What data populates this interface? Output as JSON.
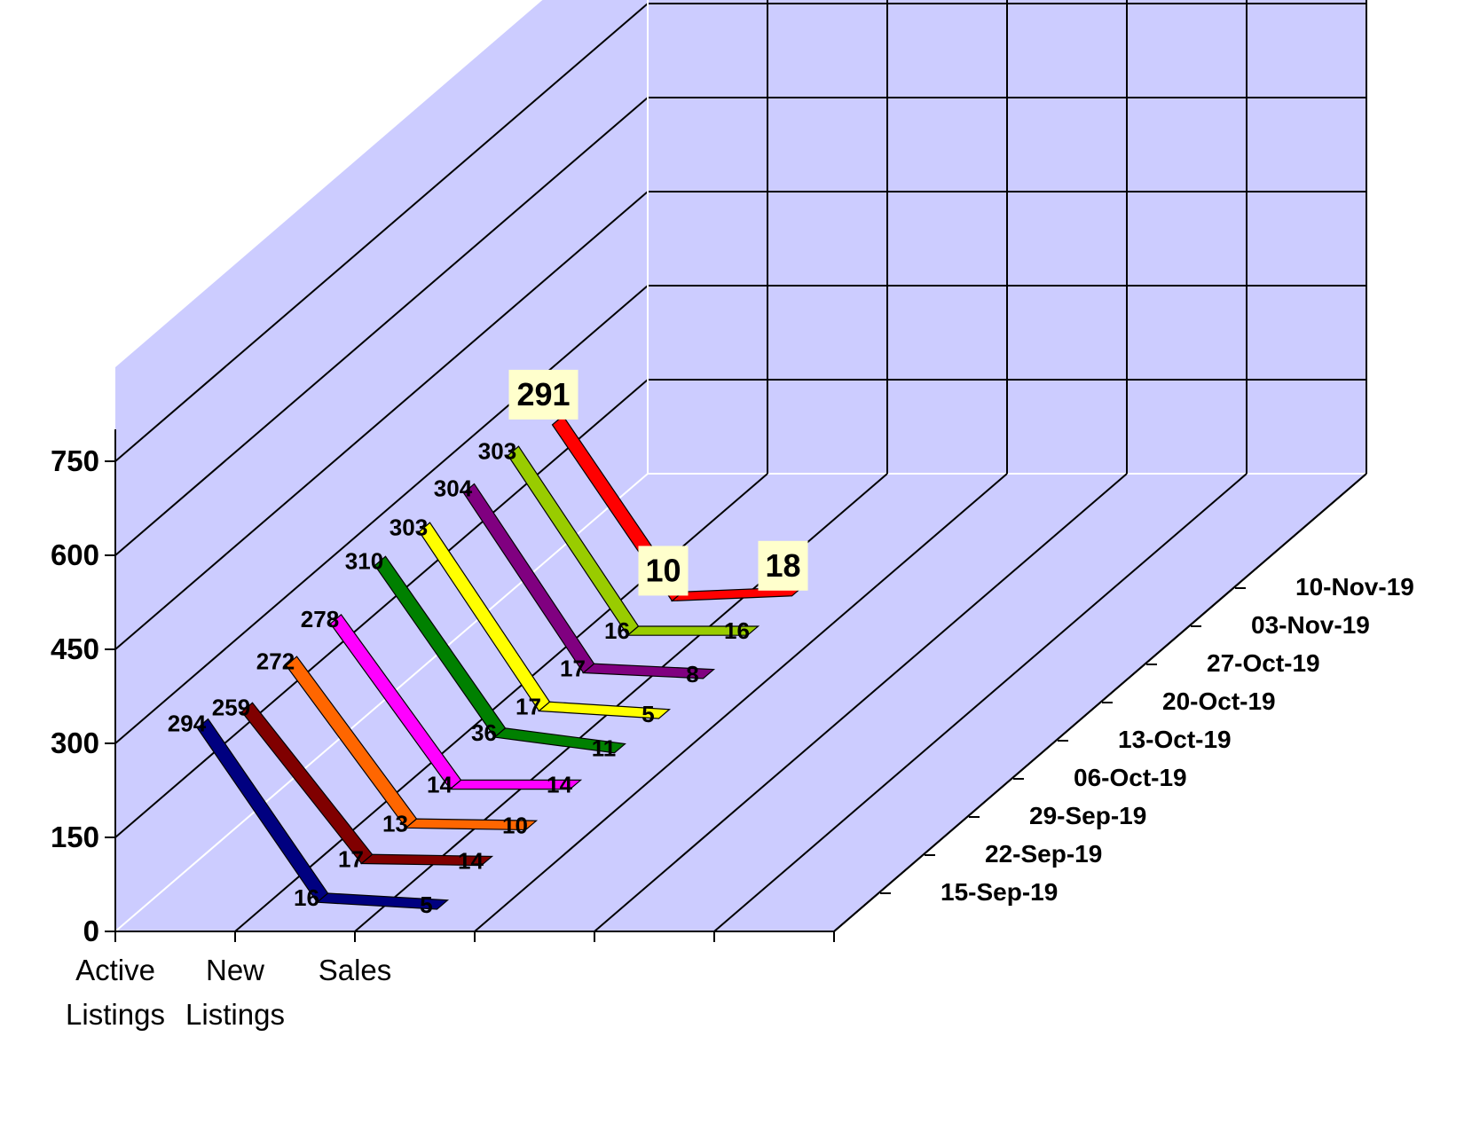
{
  "chart_data": {
    "type": "line",
    "style": "3d",
    "categories": [
      [
        "Active",
        "Listings"
      ],
      [
        "New",
        "Listings"
      ],
      [
        "Sales"
      ]
    ],
    "y_ticks": [
      "0",
      "150",
      "300",
      "450",
      "600",
      "750"
    ],
    "ylim": [
      0,
      750
    ],
    "grid": true,
    "colors": {
      "wall": "#ccccff",
      "floor": "#ccccff",
      "grid_line": "#000000",
      "label_box": "#ffffcc"
    },
    "series": [
      {
        "name": "15-Sep-19",
        "values": [
          294,
          16,
          5
        ],
        "labels": [
          "294",
          "16",
          "5"
        ],
        "color": "#000080"
      },
      {
        "name": "22-Sep-19",
        "values": [
          259,
          17,
          14
        ],
        "labels": [
          "259",
          "17",
          "14"
        ],
        "color": "#800000"
      },
      {
        "name": "29-Sep-19",
        "values": [
          272,
          13,
          10
        ],
        "labels": [
          "272",
          "13",
          "10"
        ],
        "color": "#ff6600"
      },
      {
        "name": "06-Oct-19",
        "values": [
          278,
          14,
          14
        ],
        "labels": [
          "278",
          "14",
          "14"
        ],
        "color": "#ff00ff"
      },
      {
        "name": "13-Oct-19",
        "values": [
          310,
          36,
          11
        ],
        "labels": [
          "310",
          "36",
          "11"
        ],
        "color": "#008000"
      },
      {
        "name": "20-Oct-19",
        "values": [
          303,
          17,
          5
        ],
        "labels": [
          "303",
          "17",
          "5"
        ],
        "color": "#ffff00"
      },
      {
        "name": "27-Oct-19",
        "values": [
          304,
          17,
          8
        ],
        "labels": [
          "304",
          "17",
          "8"
        ],
        "color": "#800080"
      },
      {
        "name": "03-Nov-19",
        "values": [
          303,
          16,
          16
        ],
        "labels": [
          "303",
          "16",
          "16"
        ],
        "color": "#99cc00"
      },
      {
        "name": "10-Nov-19",
        "values": [
          291,
          10,
          18
        ],
        "labels": [
          "291",
          "10",
          "18"
        ],
        "color": "#ff0000",
        "highlight": true
      }
    ]
  }
}
